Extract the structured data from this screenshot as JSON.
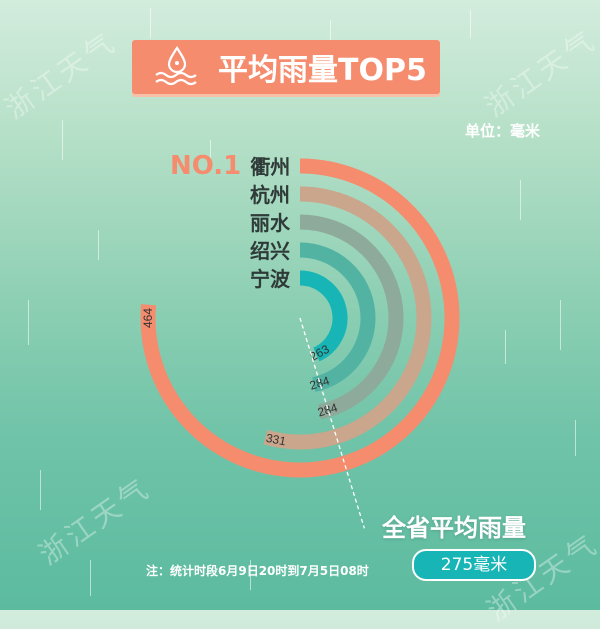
{
  "header": {
    "title": "平均雨量TOP5",
    "icon": "water-drop-waves-icon",
    "unit_label": "单位：毫米"
  },
  "watermark": "浙江天气",
  "rank_label": "NO.1",
  "average": {
    "label": "全省平均雨量",
    "value": 275,
    "value_text": "275毫米"
  },
  "note": "注：统计时段6月9日20时到7月5日08时",
  "colors": {
    "accent": "#f58c6e",
    "bar_colors": [
      "#f58c6e",
      "#c9a68c",
      "#8eaa9b",
      "#52b3a3",
      "#17b5b5"
    ],
    "avg_pill": "#17b5b5"
  },
  "chart_data": {
    "type": "bar",
    "orientation": "radial",
    "title": "平均雨量TOP5",
    "unit": "毫米",
    "categories": [
      "衢州",
      "杭州",
      "丽水",
      "绍兴",
      "宁波"
    ],
    "values": [
      464,
      331,
      284,
      284,
      263
    ],
    "value_labels": [
      "464",
      "331",
      "284",
      "284",
      "263"
    ],
    "reference_line": {
      "label": "全省平均雨量",
      "value": 275
    }
  }
}
